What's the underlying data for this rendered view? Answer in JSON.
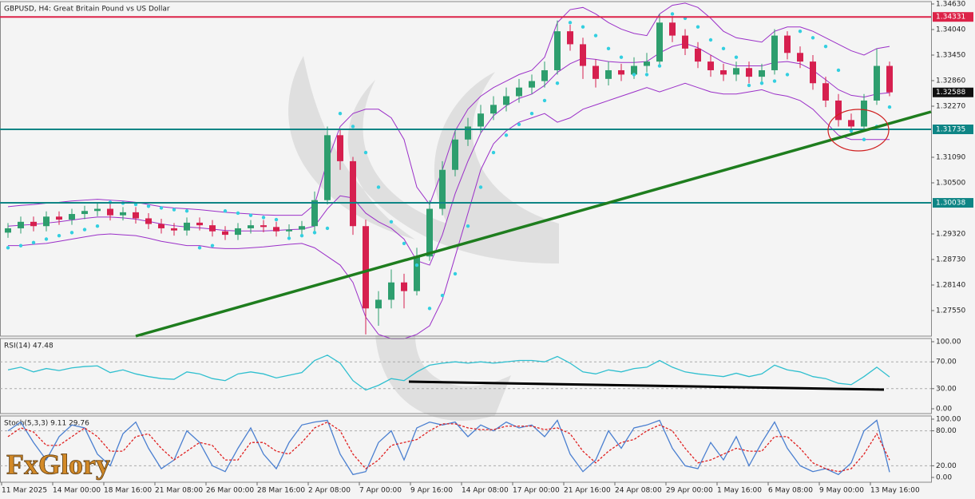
{
  "logo": "FxGlory",
  "chart_data": [
    {
      "type": "candlestick",
      "title": "GBPUSD, H4:  Great Britain Pound vs US Dollar",
      "categories": [
        "11 Mar 2025",
        null,
        null,
        null,
        "14 Mar 00:00",
        null,
        null,
        null,
        "18 Mar 16:00",
        null,
        null,
        null,
        "21 Mar 08:00",
        null,
        null,
        null,
        "26 Mar 00:00",
        null,
        null,
        null,
        "28 Mar 16:00",
        null,
        null,
        null,
        "2 Apr 08:00",
        null,
        null,
        null,
        "7 Apr 00:00",
        null,
        null,
        null,
        "9 Apr 16:00",
        null,
        null,
        null,
        "14 Apr 08:00",
        null,
        null,
        null,
        "17 Apr 00:00",
        null,
        null,
        null,
        "21 Apr 16:00",
        null,
        null,
        null,
        "24 Apr 08:00",
        null,
        null,
        null,
        "29 Apr 00:00",
        null,
        null,
        null,
        "1 May 16:00",
        null,
        null,
        null,
        "6 May 08:00",
        null,
        null,
        null,
        "9 May 00:00",
        null,
        null,
        null,
        "13 May 16:00",
        null
      ],
      "open": [
        1.2935,
        1.2945,
        1.296,
        1.295,
        1.2972,
        1.2965,
        1.2978,
        1.2985,
        1.299,
        1.2975,
        1.2982,
        1.2968,
        1.2955,
        1.2945,
        1.294,
        1.2958,
        1.2952,
        1.2938,
        1.293,
        1.2945,
        1.2952,
        1.2948,
        1.2938,
        1.2942,
        1.295,
        1.301,
        1.316,
        1.31,
        1.295,
        1.276,
        1.278,
        1.282,
        1.28,
        1.288,
        1.299,
        1.308,
        1.315,
        1.318,
        1.321,
        1.323,
        1.325,
        1.327,
        1.3285,
        1.331,
        1.34,
        1.337,
        1.332,
        1.329,
        1.331,
        1.33,
        1.332,
        1.333,
        1.342,
        1.339,
        1.336,
        1.333,
        1.331,
        1.33,
        1.3315,
        1.3295,
        1.331,
        1.339,
        1.335,
        1.333,
        1.328,
        1.324,
        1.3195,
        1.318,
        1.324,
        1.332
      ],
      "high": [
        1.2957,
        1.2972,
        1.2972,
        1.2984,
        1.2984,
        1.299,
        1.2997,
        1.3002,
        1.3002,
        1.2994,
        1.2994,
        1.298,
        1.2967,
        1.2957,
        1.297,
        1.297,
        1.2964,
        1.295,
        1.2957,
        1.2964,
        1.2964,
        1.296,
        1.2954,
        1.2962,
        1.303,
        1.318,
        1.3175,
        1.311,
        1.2965,
        1.28,
        1.285,
        1.284,
        1.29,
        1.301,
        1.31,
        1.317,
        1.32,
        1.323,
        1.325,
        1.327,
        1.329,
        1.33,
        1.333,
        1.3425,
        1.3415,
        1.3385,
        1.3335,
        1.333,
        1.3325,
        1.334,
        1.335,
        1.344,
        1.3435,
        1.3405,
        1.3375,
        1.3345,
        1.3325,
        1.333,
        1.333,
        1.3325,
        1.3405,
        1.34,
        1.3365,
        1.3345,
        1.3295,
        1.3255,
        1.321,
        1.3255,
        1.336,
        1.333
      ],
      "low": [
        1.2923,
        1.2933,
        1.2938,
        1.2938,
        1.2953,
        1.2953,
        1.2966,
        1.2973,
        1.2963,
        1.2963,
        1.2956,
        1.2943,
        1.2933,
        1.2928,
        1.2928,
        1.294,
        1.2926,
        1.2918,
        1.2918,
        1.2933,
        1.2936,
        1.2926,
        1.2926,
        1.293,
        1.2938,
        1.3,
        1.308,
        1.293,
        1.27,
        1.272,
        1.276,
        1.276,
        1.279,
        1.287,
        1.2975,
        1.3065,
        1.3135,
        1.3165,
        1.3195,
        1.3215,
        1.3235,
        1.3255,
        1.327,
        1.33,
        1.3355,
        1.329,
        1.327,
        1.3275,
        1.3285,
        1.329,
        1.3305,
        1.332,
        1.3375,
        1.3345,
        1.3315,
        1.3295,
        1.3285,
        1.3285,
        1.328,
        1.328,
        1.33,
        1.3335,
        1.3315,
        1.3265,
        1.3225,
        1.318,
        1.3165,
        1.317,
        1.323,
        1.325
      ],
      "close": [
        1.2945,
        1.296,
        1.295,
        1.2972,
        1.2965,
        1.2978,
        1.2985,
        1.299,
        1.2975,
        1.2982,
        1.2968,
        1.2955,
        1.2945,
        1.294,
        1.2958,
        1.2952,
        1.2938,
        1.293,
        1.2945,
        1.2952,
        1.2948,
        1.2938,
        1.2942,
        1.295,
        1.301,
        1.316,
        1.31,
        1.295,
        1.276,
        1.278,
        1.282,
        1.28,
        1.288,
        1.299,
        1.308,
        1.315,
        1.318,
        1.321,
        1.323,
        1.325,
        1.327,
        1.3285,
        1.331,
        1.34,
        1.337,
        1.332,
        1.329,
        1.331,
        1.33,
        1.332,
        1.333,
        1.342,
        1.339,
        1.336,
        1.333,
        1.331,
        1.33,
        1.3315,
        1.3295,
        1.331,
        1.339,
        1.335,
        1.333,
        1.328,
        1.324,
        1.3195,
        1.318,
        1.324,
        1.332,
        1.3259
      ],
      "up_color": "#2e9e6e",
      "down_color": "#d6204f",
      "bollinger": {
        "color": "#9b30c8",
        "upper": [
          1.2995,
          1.2998,
          1.3,
          1.3003,
          1.3005,
          1.3008,
          1.301,
          1.3012,
          1.301,
          1.3008,
          1.3005,
          1.3,
          1.2995,
          1.2992,
          1.299,
          1.2988,
          1.2985,
          1.2982,
          1.298,
          1.2978,
          1.2976,
          1.2975,
          1.2975,
          1.2975,
          1.3,
          1.31,
          1.318,
          1.321,
          1.322,
          1.322,
          1.32,
          1.315,
          1.304,
          1.3,
          1.308,
          1.317,
          1.322,
          1.325,
          1.327,
          1.3285,
          1.33,
          1.331,
          1.334,
          1.342,
          1.345,
          1.3455,
          1.344,
          1.342,
          1.3405,
          1.3395,
          1.339,
          1.344,
          1.346,
          1.3465,
          1.3455,
          1.343,
          1.34,
          1.3385,
          1.338,
          1.3375,
          1.34,
          1.341,
          1.341,
          1.34,
          1.3385,
          1.337,
          1.3355,
          1.3345,
          1.336,
          1.3365
        ],
        "middle": [
          1.295,
          1.2952,
          1.2954,
          1.2957,
          1.296,
          1.2964,
          1.2968,
          1.2971,
          1.2971,
          1.2969,
          1.2966,
          1.2961,
          1.2955,
          1.2951,
          1.2948,
          1.2946,
          1.2943,
          1.294,
          1.2939,
          1.2939,
          1.2939,
          1.294,
          1.2942,
          1.2943,
          1.295,
          1.299,
          1.302,
          1.3015,
          1.298,
          1.296,
          1.2945,
          1.292,
          1.287,
          1.286,
          1.293,
          1.3025,
          1.31,
          1.3165,
          1.3205,
          1.3228,
          1.3245,
          1.3255,
          1.3275,
          1.3305,
          1.3325,
          1.3338,
          1.3335,
          1.333,
          1.3328,
          1.3328,
          1.333,
          1.335,
          1.3365,
          1.3372,
          1.3362,
          1.3345,
          1.3328,
          1.332,
          1.332,
          1.332,
          1.3328,
          1.333,
          1.3325,
          1.331,
          1.3288,
          1.3265,
          1.3252,
          1.3248,
          1.3255,
          1.3258
        ],
        "lower": [
          1.2905,
          1.2905,
          1.2908,
          1.291,
          1.2915,
          1.292,
          1.2925,
          1.293,
          1.2932,
          1.293,
          1.2928,
          1.2922,
          1.2915,
          1.291,
          1.2905,
          1.2905,
          1.29,
          1.2898,
          1.2898,
          1.29,
          1.2902,
          1.2905,
          1.2908,
          1.291,
          1.29,
          1.288,
          1.286,
          1.282,
          1.274,
          1.27,
          1.269,
          1.269,
          1.27,
          1.272,
          1.278,
          1.288,
          1.298,
          1.308,
          1.314,
          1.317,
          1.319,
          1.32,
          1.321,
          1.319,
          1.32,
          1.322,
          1.323,
          1.324,
          1.325,
          1.326,
          1.327,
          1.326,
          1.327,
          1.328,
          1.327,
          1.326,
          1.3255,
          1.3255,
          1.326,
          1.3265,
          1.3255,
          1.325,
          1.324,
          1.322,
          1.319,
          1.316,
          1.315,
          1.315,
          1.315,
          1.315
        ]
      },
      "sar": {
        "color": "#33cfe0",
        "values": [
          1.29,
          1.2905,
          1.2912,
          1.292,
          1.2928,
          1.2935,
          1.2942,
          1.295,
          1.3005,
          1.3003,
          1.3,
          1.2996,
          1.2992,
          1.2988,
          1.2985,
          1.29,
          1.2905,
          1.2985,
          1.298,
          1.2975,
          1.297,
          1.2965,
          1.2922,
          1.2928,
          1.2935,
          1.2945,
          1.321,
          1.318,
          1.312,
          1.304,
          1.296,
          1.291,
          1.286,
          1.276,
          1.279,
          1.284,
          1.295,
          1.304,
          1.312,
          1.316,
          1.3185,
          1.321,
          1.324,
          1.328,
          1.342,
          1.341,
          1.339,
          1.336,
          1.334,
          1.33,
          1.33,
          1.332,
          1.344,
          1.343,
          1.341,
          1.338,
          1.336,
          1.334,
          1.3275,
          1.328,
          1.3285,
          1.33,
          1.34,
          1.3385,
          1.3365,
          1.331,
          1.317,
          1.315,
          1.318,
          1.3225
        ]
      },
      "levels": [
        {
          "value": 1.34331,
          "color": "#dc2348"
        },
        {
          "value": 1.31735,
          "color": "#0e8585"
        },
        {
          "value": 1.30038,
          "color": "#0e8585"
        }
      ],
      "last_price": 1.32588,
      "ylim": [
        1.2696,
        1.34685
      ],
      "yticks": [
        {
          "value": 1.3463,
          "label": "1.34630"
        },
        {
          "value": 1.3404,
          "label": "1.34040"
        },
        {
          "value": 1.3345,
          "label": "1.33450"
        },
        {
          "value": 1.3286,
          "label": "1.32860"
        },
        {
          "value": 1.3227,
          "label": "1.32270"
        },
        {
          "value": 1.3109,
          "label": "1.31090"
        },
        {
          "value": 1.305,
          "label": "1.30500"
        },
        {
          "value": 1.2932,
          "label": "1.29320"
        },
        {
          "value": 1.2873,
          "label": "1.28730"
        },
        {
          "value": 1.2814,
          "label": "1.28140"
        },
        {
          "value": 1.2755,
          "label": "1.27550"
        }
      ]
    },
    {
      "type": "line",
      "title": "RSI(14) 47.48",
      "lines": [
        {
          "color": "#2fbfcf",
          "style": "solid",
          "values": [
            58,
            62,
            55,
            60,
            57,
            61,
            63,
            64,
            54,
            58,
            52,
            48,
            45,
            44,
            55,
            52,
            45,
            42,
            52,
            55,
            52,
            46,
            50,
            54,
            72,
            80,
            68,
            42,
            28,
            35,
            45,
            42,
            55,
            65,
            68,
            70,
            68,
            70,
            68,
            70,
            72,
            72,
            70,
            78,
            68,
            55,
            52,
            58,
            55,
            60,
            62,
            72,
            62,
            55,
            52,
            50,
            48,
            53,
            48,
            52,
            65,
            58,
            55,
            48,
            45,
            38,
            36,
            48,
            62,
            47.48
          ]
        }
      ],
      "ylim": [
        -7.14,
        104.76
      ],
      "yticks": [
        {
          "value": 100,
          "label": "100.00"
        },
        {
          "value": 70,
          "label": "70.00"
        },
        {
          "value": 30,
          "label": "30.00"
        },
        {
          "value": 0,
          "label": "0.00"
        }
      ]
    },
    {
      "type": "line",
      "title": "Stoch(5,3,3) 9.11 29.76",
      "lines": [
        {
          "color": "#4a7fd0",
          "style": "solid",
          "values": [
            80,
            95,
            60,
            30,
            70,
            90,
            85,
            40,
            20,
            75,
            95,
            50,
            15,
            30,
            80,
            60,
            20,
            10,
            50,
            85,
            40,
            15,
            60,
            90,
            95,
            98,
            40,
            5,
            10,
            60,
            80,
            30,
            85,
            95,
            90,
            95,
            70,
            90,
            80,
            95,
            85,
            90,
            70,
            98,
            40,
            10,
            30,
            80,
            50,
            85,
            90,
            98,
            50,
            20,
            15,
            60,
            30,
            70,
            20,
            60,
            95,
            50,
            20,
            10,
            15,
            5,
            25,
            80,
            98,
            9.11
          ]
        },
        {
          "color": "#e02020",
          "style": "dashed",
          "values": [
            70,
            85,
            78,
            55,
            55,
            70,
            85,
            70,
            45,
            45,
            70,
            75,
            50,
            30,
            45,
            60,
            55,
            30,
            30,
            60,
            60,
            45,
            40,
            60,
            85,
            95,
            80,
            40,
            15,
            30,
            55,
            60,
            65,
            80,
            92,
            92,
            85,
            82,
            82,
            88,
            88,
            88,
            82,
            85,
            75,
            45,
            25,
            45,
            60,
            65,
            80,
            90,
            80,
            50,
            25,
            30,
            40,
            50,
            45,
            45,
            70,
            70,
            50,
            25,
            15,
            10,
            15,
            40,
            75,
            29.76
          ]
        }
      ],
      "ylim": [
        -8.22,
        105.48
      ],
      "yticks": [
        {
          "value": 100,
          "label": "100.00"
        },
        {
          "value": 80,
          "label": "80.00"
        },
        {
          "value": 20,
          "label": "20.00"
        },
        {
          "value": 0,
          "label": "0.00"
        }
      ]
    }
  ]
}
